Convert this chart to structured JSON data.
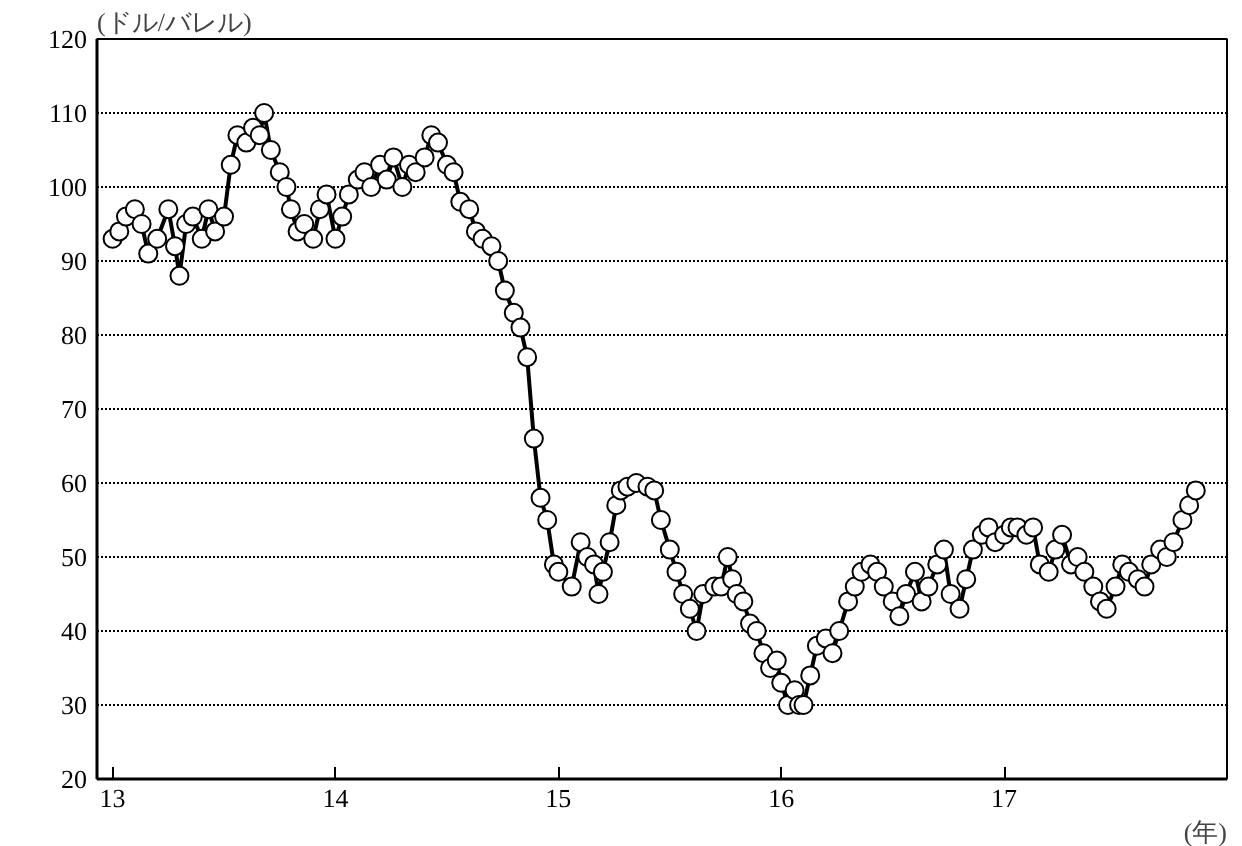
{
  "chart_data": {
    "type": "line",
    "ylabel": "(ドル/バレル)",
    "xlabel": "(年)",
    "xlim": [
      12.93,
      18.0
    ],
    "ylim": [
      20,
      120
    ],
    "xticks": [
      13,
      14,
      15,
      16,
      17
    ],
    "yticks": [
      20,
      30,
      40,
      50,
      60,
      70,
      80,
      90,
      100,
      110,
      120
    ],
    "grid": "y",
    "marker": "circle",
    "line_style": "solid",
    "x": [
      13.0,
      13.03,
      13.06,
      13.1,
      13.13,
      13.16,
      13.2,
      13.25,
      13.28,
      13.3,
      13.33,
      13.36,
      13.4,
      13.43,
      13.46,
      13.5,
      13.53,
      13.56,
      13.6,
      13.63,
      13.66,
      13.68,
      13.71,
      13.75,
      13.78,
      13.8,
      13.83,
      13.86,
      13.9,
      13.93,
      13.96,
      14.0,
      14.03,
      14.06,
      14.1,
      14.13,
      14.16,
      14.2,
      14.23,
      14.26,
      14.3,
      14.33,
      14.36,
      14.4,
      14.43,
      14.46,
      14.5,
      14.53,
      14.56,
      14.6,
      14.63,
      14.66,
      14.7,
      14.73,
      14.76,
      14.8,
      14.83,
      14.86,
      14.89,
      14.92,
      14.95,
      14.98,
      15.0,
      15.06,
      15.1,
      15.13,
      15.16,
      15.18,
      15.2,
      15.23,
      15.26,
      15.28,
      15.31,
      15.35,
      15.4,
      15.43,
      15.46,
      15.5,
      15.53,
      15.56,
      15.59,
      15.62,
      15.65,
      15.7,
      15.73,
      15.76,
      15.78,
      15.8,
      15.83,
      15.86,
      15.89,
      15.92,
      15.95,
      15.98,
      16.0,
      16.03,
      16.06,
      16.08,
      16.1,
      16.13,
      16.16,
      16.2,
      16.23,
      16.26,
      16.3,
      16.33,
      16.36,
      16.4,
      16.43,
      16.46,
      16.5,
      16.53,
      16.56,
      16.6,
      16.63,
      16.66,
      16.7,
      16.73,
      16.76,
      16.8,
      16.83,
      16.86,
      16.9,
      16.93,
      16.96,
      17.0,
      17.03,
      17.06,
      17.1,
      17.13,
      17.16,
      17.2,
      17.23,
      17.26,
      17.3,
      17.33,
      17.36,
      17.4,
      17.43,
      17.46,
      17.5,
      17.53,
      17.56,
      17.6,
      17.63,
      17.66,
      17.7,
      17.73,
      17.76,
      17.8,
      17.83,
      17.86
    ],
    "series": [
      {
        "color": "#000000",
        "values": [
          93,
          94,
          96,
          97,
          95,
          91,
          93,
          97,
          92,
          88,
          95,
          96,
          93,
          97,
          94,
          96,
          103,
          107,
          106,
          108,
          107,
          110,
          105,
          102,
          100,
          97,
          94,
          95,
          93,
          97,
          99,
          93,
          96,
          99,
          101,
          102,
          100,
          103,
          101,
          104,
          100,
          103,
          102,
          104,
          107,
          106,
          103,
          102,
          98,
          97,
          94,
          93,
          92,
          90,
          86,
          83,
          81,
          77,
          66,
          58,
          55,
          49,
          48,
          46,
          52,
          50,
          49,
          45,
          48,
          52,
          57,
          59,
          59.5,
          60,
          59.5,
          59,
          55,
          51,
          48,
          45,
          43,
          40,
          45,
          46,
          46,
          50,
          47,
          45,
          44,
          41,
          40,
          37,
          35,
          36,
          33,
          30,
          32,
          30,
          30,
          34,
          38,
          39,
          37,
          40,
          44,
          46,
          48,
          49,
          48,
          46,
          44,
          42,
          45,
          48,
          44,
          46,
          49,
          51,
          45,
          43,
          47,
          51,
          53,
          54,
          52,
          53,
          54,
          54,
          53,
          54,
          49,
          48,
          51,
          53,
          49,
          50,
          48,
          46,
          44,
          43,
          46,
          49,
          48,
          47,
          46,
          49,
          51,
          50,
          52,
          55,
          57,
          59
        ]
      }
    ]
  }
}
